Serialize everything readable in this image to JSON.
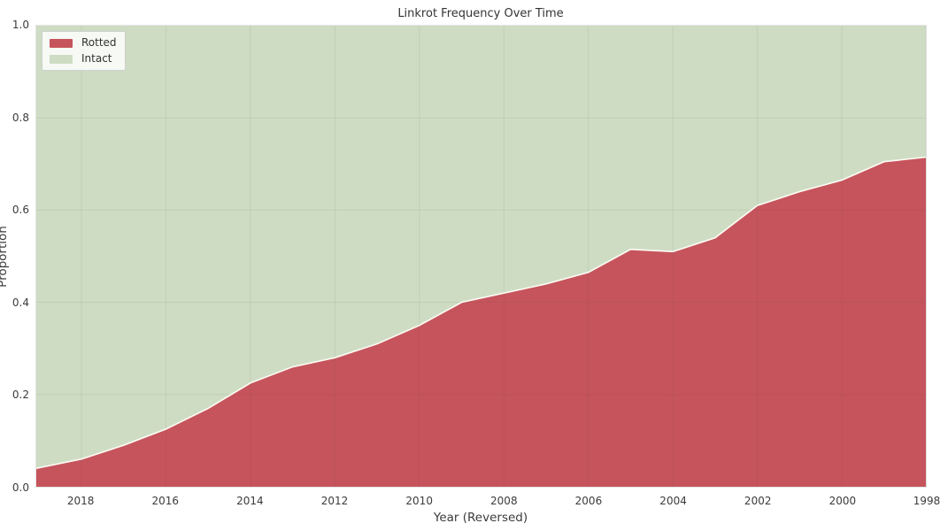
{
  "figure": {
    "title": "Linkrot Frequency Over Time",
    "x_axis_label": "Year (Reversed)",
    "y_axis_label": "Proportion"
  },
  "legend": {
    "items": [
      {
        "label": "Rotted",
        "color": "#c6545c"
      },
      {
        "label": "Intact",
        "color": "#cedcc3"
      }
    ]
  },
  "colors": {
    "rotted": "#c6545c",
    "intact": "#cedcc3",
    "boundary_line": "#fbfaf2",
    "gridline": "rgba(60,60,60,0.08)"
  },
  "chart_data": {
    "type": "area",
    "stacked": true,
    "title": "Linkrot Frequency Over Time",
    "xlabel": "Year (Reversed)",
    "ylabel": "Proportion",
    "x_reversed": true,
    "grid": true,
    "legend_position": "upper left",
    "ylim": [
      0,
      1
    ],
    "xlim_years": [
      2019.07,
      1998.01
    ],
    "x": [
      2019,
      2018,
      2017,
      2016,
      2015,
      2014,
      2013,
      2012,
      2011,
      2010,
      2009,
      2008,
      2007,
      2006,
      2005,
      2004,
      2003,
      2002,
      2001,
      2000,
      1999,
      1998
    ],
    "series": [
      {
        "name": "Rotted",
        "color": "#c6545c",
        "values": [
          0.04,
          0.06,
          0.09,
          0.125,
          0.17,
          0.225,
          0.26,
          0.28,
          0.31,
          0.35,
          0.4,
          0.42,
          0.44,
          0.465,
          0.515,
          0.51,
          0.54,
          0.61,
          0.64,
          0.665,
          0.705,
          0.715
        ]
      },
      {
        "name": "Intact",
        "color": "#cedcc3",
        "values": [
          0.96,
          0.94,
          0.91,
          0.875,
          0.83,
          0.775,
          0.74,
          0.72,
          0.69,
          0.65,
          0.6,
          0.58,
          0.56,
          0.535,
          0.485,
          0.49,
          0.46,
          0.39,
          0.36,
          0.335,
          0.295,
          0.285
        ]
      }
    ],
    "y_ticks": [
      "1.0",
      "0.8",
      "0.6",
      "0.4",
      "0.2",
      "0.0"
    ],
    "x_ticks": [
      "2018",
      "2016",
      "2014",
      "2012",
      "2010",
      "2008",
      "2006",
      "2004",
      "2002",
      "2000",
      "1998"
    ]
  }
}
